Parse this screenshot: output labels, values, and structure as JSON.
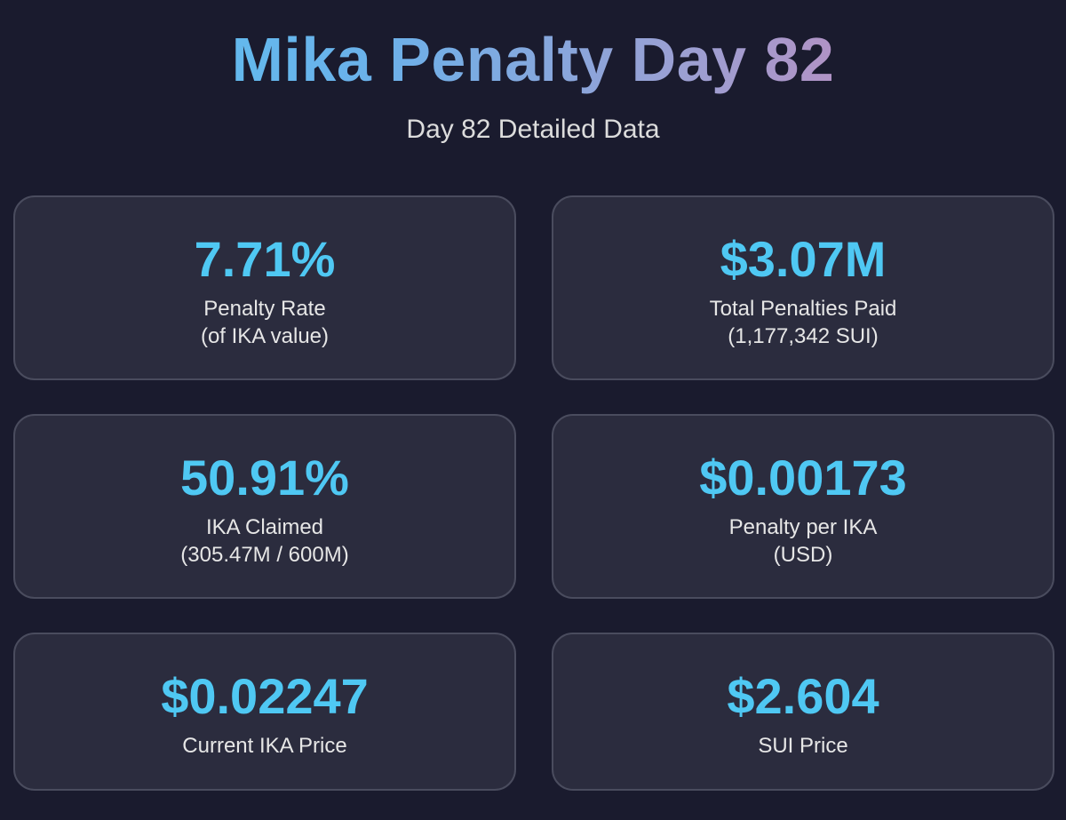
{
  "header": {
    "title": "Mika Penalty Day 82",
    "subtitle": "Day 82 Detailed Data"
  },
  "cards": [
    {
      "value": "7.71%",
      "label": "Penalty Rate",
      "sublabel": "(of IKA value)"
    },
    {
      "value": "$3.07M",
      "label": "Total Penalties Paid",
      "sublabel": "(1,177,342 SUI)"
    },
    {
      "value": "50.91%",
      "label": "IKA Claimed",
      "sublabel": "(305.47M / 600M)"
    },
    {
      "value": "$0.00173",
      "label": "Penalty per IKA",
      "sublabel": "(USD)"
    },
    {
      "value": "$0.02247",
      "label": "Current IKA Price"
    },
    {
      "value": "$2.604",
      "label": "SUI Price"
    }
  ],
  "colors": {
    "background": "#1a1b2e",
    "card_background": "#2b2c3e",
    "card_border": "#4a4c5e",
    "value": "#4fc8f3",
    "title_gradient_start": "#56c5f2",
    "title_gradient_end": "#d07fb0",
    "text": "#e6e6e6"
  }
}
